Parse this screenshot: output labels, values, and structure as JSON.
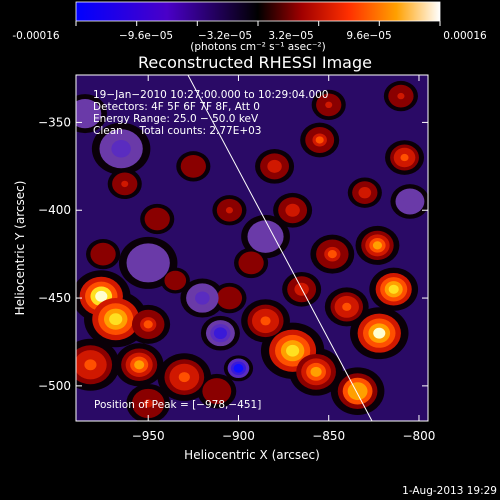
{
  "colorbar": {
    "tick_labels": [
      "-0.00016",
      "−9.6e−05",
      "−3.2e−05",
      "3.2e−05",
      "9.6e−05",
      "0.00016"
    ],
    "unit_label": "(photons cm⁻² s⁻¹ asec⁻²)"
  },
  "chart_data": {
    "type": "heatmap",
    "title": "Reconstructed RHESSI Image",
    "xlabel": "Heliocentric X (arcsec)",
    "ylabel": "Heliocentric Y (arcsec)",
    "xlim": [
      -990,
      -795
    ],
    "ylim": [
      -520,
      -323
    ],
    "x_ticks": [
      -950,
      -900,
      -850,
      -800
    ],
    "y_ticks": [
      -350,
      -400,
      -450,
      -500
    ],
    "x_tick_labels": [
      "−950",
      "−900",
      "−850",
      "−800"
    ],
    "y_tick_labels": [
      "−350",
      "−400",
      "−450",
      "−500"
    ],
    "value_range": [
      -0.00016,
      0.00016
    ],
    "annotations": [
      "19−Jan−2010 10:27:00.000 to 10:29:04.000",
      "Detectors: 4F 5F 6F 7F 8F, Att 0",
      "Energy Range: 25.0 − 50.0 keV",
      "Clean     Total counts: 2.77E+03"
    ],
    "peak_label": "Position of Peak = [−978,−451]",
    "peak": [
      -978,
      -451
    ],
    "limb_line": [
      [
        -928,
        -323
      ],
      [
        -826,
        -520
      ]
    ],
    "blobs": [
      {
        "x": -976,
        "y": -449,
        "v": 1.0,
        "r": 12
      },
      {
        "x": -968,
        "y": -462,
        "v": 0.9,
        "r": 13
      },
      {
        "x": -982,
        "y": -488,
        "v": 0.6,
        "r": 12
      },
      {
        "x": -955,
        "y": -488,
        "v": 0.7,
        "r": 10
      },
      {
        "x": -950,
        "y": -465,
        "v": 0.55,
        "r": 9
      },
      {
        "x": -930,
        "y": -495,
        "v": 0.6,
        "r": 11
      },
      {
        "x": -950,
        "y": -510,
        "v": 0.45,
        "r": 9
      },
      {
        "x": -912,
        "y": -503,
        "v": 0.35,
        "r": 8
      },
      {
        "x": -870,
        "y": -480,
        "v": 0.85,
        "r": 13
      },
      {
        "x": -885,
        "y": -463,
        "v": 0.6,
        "r": 10
      },
      {
        "x": -857,
        "y": -492,
        "v": 0.75,
        "r": 11
      },
      {
        "x": -834,
        "y": -503,
        "v": 0.8,
        "r": 11
      },
      {
        "x": -822,
        "y": -470,
        "v": 0.95,
        "r": 12
      },
      {
        "x": -814,
        "y": -445,
        "v": 0.9,
        "r": 10
      },
      {
        "x": -840,
        "y": -455,
        "v": 0.6,
        "r": 9
      },
      {
        "x": -823,
        "y": -420,
        "v": 0.7,
        "r": 9
      },
      {
        "x": -848,
        "y": -425,
        "v": 0.55,
        "r": 9
      },
      {
        "x": -865,
        "y": -445,
        "v": 0.5,
        "r": 8
      },
      {
        "x": -870,
        "y": -400,
        "v": 0.5,
        "r": 8
      },
      {
        "x": -855,
        "y": -360,
        "v": 0.55,
        "r": 8
      },
      {
        "x": -808,
        "y": -370,
        "v": 0.6,
        "r": 8
      },
      {
        "x": -830,
        "y": -390,
        "v": 0.5,
        "r": 7
      },
      {
        "x": -880,
        "y": -375,
        "v": 0.5,
        "r": 8
      },
      {
        "x": -905,
        "y": -400,
        "v": 0.4,
        "r": 7
      },
      {
        "x": -925,
        "y": -375,
        "v": 0.35,
        "r": 7
      },
      {
        "x": -963,
        "y": -385,
        "v": 0.4,
        "r": 7
      },
      {
        "x": -945,
        "y": -405,
        "v": 0.3,
        "r": 7
      },
      {
        "x": -935,
        "y": -440,
        "v": 0.3,
        "r": 6
      },
      {
        "x": -905,
        "y": -450,
        "v": 0.35,
        "r": 7
      },
      {
        "x": -893,
        "y": -430,
        "v": 0.3,
        "r": 7
      },
      {
        "x": -810,
        "y": -335,
        "v": 0.45,
        "r": 7
      },
      {
        "x": -850,
        "y": -340,
        "v": 0.4,
        "r": 7
      },
      {
        "x": -975,
        "y": -425,
        "v": 0.35,
        "r": 7
      },
      {
        "x": -900,
        "y": -490,
        "v": -0.95,
        "r": 6
      },
      {
        "x": -910,
        "y": -470,
        "v": -0.7,
        "r": 8
      },
      {
        "x": -920,
        "y": -450,
        "v": -0.45,
        "r": 9
      },
      {
        "x": -965,
        "y": -365,
        "v": -0.5,
        "r": 12
      },
      {
        "x": -985,
        "y": -345,
        "v": -0.35,
        "r": 9
      },
      {
        "x": -950,
        "y": -430,
        "v": -0.3,
        "r": 12
      },
      {
        "x": -885,
        "y": -415,
        "v": -0.25,
        "r": 10
      },
      {
        "x": -805,
        "y": -395,
        "v": -0.3,
        "r": 8
      }
    ]
  }
}
